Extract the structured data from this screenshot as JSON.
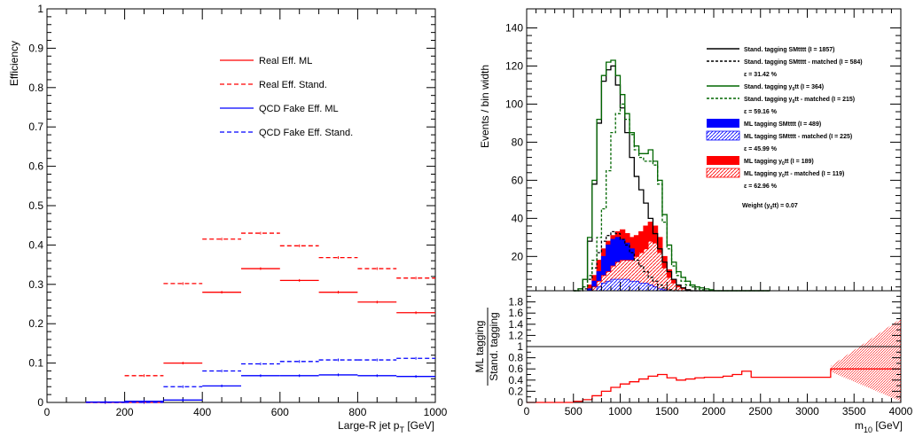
{
  "chart_data": [
    {
      "type": "line",
      "panel": "left",
      "xlabel_main": "Large-R jet p",
      "xlabel_sub": "T",
      "xlabel_unit": " [GeV]",
      "ylabel": "Efficiency",
      "xlim": [
        0,
        1000
      ],
      "ylim": [
        0,
        1
      ],
      "x_ticks": [
        "0",
        "200",
        "400",
        "600",
        "800",
        "1000"
      ],
      "y_ticks": [
        "0",
        "0.1",
        "0.2",
        "0.3",
        "0.4",
        "0.5",
        "0.6",
        "0.7",
        "0.8",
        "0.9",
        "1"
      ],
      "legend_position": "top-right",
      "bin_edges": [
        100,
        200,
        300,
        400,
        500,
        600,
        700,
        800,
        900,
        1000
      ],
      "series": [
        {
          "name": "Real Eff. ML",
          "color": "#ff0000",
          "style": "solid",
          "values": [
            0.0,
            0.0,
            0.1,
            0.28,
            0.34,
            0.31,
            0.28,
            0.255,
            0.228
          ]
        },
        {
          "name": "Real Eff. Stand.",
          "color": "#ff0000",
          "style": "dashed",
          "values": [
            0.0,
            0.068,
            0.302,
            0.415,
            0.43,
            0.398,
            0.368,
            0.34,
            0.316
          ]
        },
        {
          "name": "QCD Fake Eff. ML",
          "color": "#0000ff",
          "style": "solid",
          "values": [
            0.001,
            0.003,
            0.006,
            0.042,
            0.068,
            0.068,
            0.07,
            0.068,
            0.066
          ]
        },
        {
          "name": "QCD Fake Eff. Stand.",
          "color": "#0000ff",
          "style": "dashed",
          "values": [
            0.0,
            0.0,
            0.04,
            0.08,
            0.098,
            0.104,
            0.108,
            0.108,
            0.112
          ]
        }
      ]
    },
    {
      "type": "area",
      "panel": "right-top",
      "ylabel": "Events / bin width",
      "xlim": [
        0,
        4000
      ],
      "ylim": [
        2,
        150
      ],
      "y_ticks": [
        "20",
        "40",
        "60",
        "80",
        "100",
        "120",
        "140"
      ],
      "y_tick_values": [
        20,
        40,
        60,
        80,
        100,
        120,
        140
      ],
      "extra_label": "Weight (y",
      "extra_label_sub": "0",
      "extra_label_tail": "tt) = 0.07",
      "legend": [
        {
          "kind": "line",
          "color": "#000000",
          "style": "solid",
          "label": "Stand. tagging SMtttt (I = 1857)"
        },
        {
          "kind": "line",
          "color": "#000000",
          "style": "dashed",
          "label": "Stand. tagging SMtttt - matched (I = 584)"
        },
        {
          "kind": "text",
          "label": "ε = 31.42 %"
        },
        {
          "kind": "line",
          "color": "#006600",
          "style": "solid",
          "label": "Stand. tagging y",
          "sub": "0",
          "tail": "tt (I = 364)"
        },
        {
          "kind": "line",
          "color": "#006600",
          "style": "dashed",
          "label": "Stand. tagging y",
          "sub": "0",
          "tail": "tt - matched (I = 215)"
        },
        {
          "kind": "text",
          "label": "ε = 59.16 %"
        },
        {
          "kind": "box",
          "color": "#0000ff",
          "label": "ML tagging SMtttt (I = 489)"
        },
        {
          "kind": "hatch",
          "color": "#0000ff",
          "label": "ML tagging SMtttt - matched (I = 225)"
        },
        {
          "kind": "text",
          "label": "ε = 45.99 %"
        },
        {
          "kind": "box",
          "color": "#ff0000",
          "label": "ML tagging y",
          "sub": "0",
          "tail": "tt (I = 189)"
        },
        {
          "kind": "hatch",
          "color": "#ff0000",
          "label": "ML tagging y",
          "sub": "0",
          "tail": "tt - matched (I = 119)"
        },
        {
          "kind": "text",
          "label": "ε = 62.96 %"
        }
      ],
      "bin_edges": [
        500,
        550,
        600,
        650,
        700,
        750,
        800,
        850,
        900,
        950,
        1000,
        1050,
        1100,
        1150,
        1200,
        1250,
        1300,
        1350,
        1400,
        1450,
        1500,
        1550,
        1600,
        1650,
        1700,
        1750,
        1800,
        1850,
        1900,
        1950,
        2000,
        2100,
        2200,
        2400,
        2600
      ],
      "series": [
        {
          "name": "Stand. tagging SMtttt",
          "color": "#000000",
          "style": "solid",
          "values": [
            1,
            3,
            8,
            28,
            58,
            90,
            112,
            118,
            120,
            110,
            98,
            85,
            72,
            62,
            55,
            48,
            40,
            32,
            24,
            17,
            12,
            8,
            5,
            3.5,
            2.5,
            2,
            1.6,
            1.3,
            1.1,
            1,
            0.8,
            0.6,
            0.4,
            0.3
          ]
        },
        {
          "name": "Stand. tagging SMtttt - matched",
          "color": "#000000",
          "style": "dashed",
          "values": [
            0.5,
            1,
            3,
            8,
            14,
            22,
            28,
            31,
            33,
            32,
            29,
            26,
            22,
            18,
            15,
            12,
            9,
            7,
            5,
            3.5,
            2.5,
            1.8,
            1.3,
            1,
            0.8,
            0.6,
            0.5,
            0.4,
            0.3,
            0.2,
            0.2,
            0.1,
            0.1,
            0.1
          ]
        },
        {
          "name": "Stand. tagging y0tt",
          "color": "#006600",
          "style": "solid",
          "values": [
            1,
            3,
            8,
            30,
            60,
            92,
            115,
            122,
            123,
            115,
            105,
            95,
            85,
            78,
            74,
            74,
            76,
            70,
            60,
            42,
            26,
            17,
            12,
            9,
            7,
            5,
            4,
            3.5,
            3,
            2.5,
            2,
            1.5,
            1,
            0.8
          ]
        },
        {
          "name": "Stand. tagging y0tt - matched",
          "color": "#006600",
          "style": "dashed",
          "values": [
            0.5,
            1,
            4,
            10,
            18,
            30,
            45,
            65,
            85,
            95,
            100,
            92,
            84,
            76,
            72,
            70,
            70,
            68,
            58,
            38,
            24,
            15,
            10,
            7,
            5,
            4,
            3,
            2.5,
            2,
            1.5,
            1.2,
            1,
            0.8,
            0.5
          ]
        },
        {
          "name": "ML tagging SMtttt",
          "color": "#0000ff",
          "style": "fill",
          "values": [
            0.2,
            0.5,
            1,
            3,
            7,
            12,
            20,
            26,
            29,
            30,
            29,
            27,
            24,
            20,
            18,
            16,
            12,
            9,
            6,
            4,
            2.5,
            1.8,
            1.2,
            0.8,
            0.6,
            0.5,
            0.4,
            0.3,
            0.2,
            0.2,
            0.1,
            0.1,
            0.1,
            0.1
          ]
        },
        {
          "name": "ML tagging SMtttt - matched",
          "color": "#0000ff",
          "style": "hatch",
          "values": [
            0.1,
            0.2,
            0.5,
            1,
            2,
            4,
            6,
            7,
            8,
            8,
            8,
            8,
            7,
            7,
            6,
            6,
            5,
            4,
            3,
            2.5,
            1.8,
            1.2,
            0.8,
            0.6,
            0.4,
            0.3,
            0.2,
            0.2,
            0.1,
            0.1,
            0.1,
            0.1,
            0,
            0
          ]
        },
        {
          "name": "ML tagging y0tt",
          "color": "#ff0000",
          "style": "fill",
          "values": [
            0.3,
            0.8,
            2,
            5,
            10,
            18,
            24,
            28,
            31,
            33,
            34,
            32,
            30,
            31,
            33,
            36,
            38,
            36,
            30,
            20,
            13,
            8,
            5,
            3.5,
            2.5,
            2,
            1.5,
            1.2,
            1,
            0.8,
            0.5,
            0.4,
            0.3,
            0.2
          ]
        },
        {
          "name": "ML tagging y0tt - matched",
          "color": "#ff0000",
          "style": "hatch",
          "values": [
            0.1,
            0.3,
            0.8,
            2,
            4,
            7,
            10,
            12,
            15,
            17,
            18,
            18,
            18,
            20,
            22,
            24,
            28,
            27,
            22,
            14,
            9,
            6,
            4,
            3,
            2,
            1.5,
            1,
            0.8,
            0.6,
            0.5,
            0.3,
            0.2,
            0.1,
            0.1
          ]
        }
      ]
    },
    {
      "type": "line",
      "panel": "right-bottom",
      "ylabel_line1": "ML tagging",
      "ylabel_line2": "Stand. tagging",
      "xlabel_main": "m",
      "xlabel_sub": "10",
      "xlabel_unit": " [GeV]",
      "xlim": [
        0,
        4000
      ],
      "ylim": [
        0,
        2
      ],
      "x_ticks": [
        "0",
        "500",
        "1000",
        "1500",
        "2000",
        "2500",
        "3000",
        "3500",
        "4000"
      ],
      "x_tick_values": [
        0,
        500,
        1000,
        1500,
        2000,
        2500,
        3000,
        3500,
        4000
      ],
      "y_ticks": [
        "0",
        "0.2",
        "0.4",
        "0.6",
        "0.8",
        "1",
        "1.2",
        "1.4",
        "1.6",
        "1.8"
      ],
      "y_tick_values": [
        0,
        0.2,
        0.4,
        0.6,
        0.8,
        1,
        1.2,
        1.4,
        1.6,
        1.8
      ],
      "reference_line": 1,
      "ratio_bin_edges": [
        0,
        500,
        600,
        700,
        800,
        900,
        1000,
        1100,
        1200,
        1300,
        1400,
        1500,
        1600,
        1700,
        1800,
        1900,
        2000,
        2100,
        2200,
        2300,
        2400,
        2500,
        3250,
        4000
      ],
      "series": [
        {
          "name": "ratio",
          "color": "#ff0000",
          "style": "solid",
          "values": [
            0,
            0.02,
            0.05,
            0.12,
            0.2,
            0.27,
            0.33,
            0.37,
            0.42,
            0.47,
            0.5,
            0.44,
            0.4,
            0.42,
            0.44,
            0.45,
            0.45,
            0.47,
            0.5,
            0.56,
            0.45,
            0.45,
            0.6
          ]
        }
      ]
    }
  ]
}
